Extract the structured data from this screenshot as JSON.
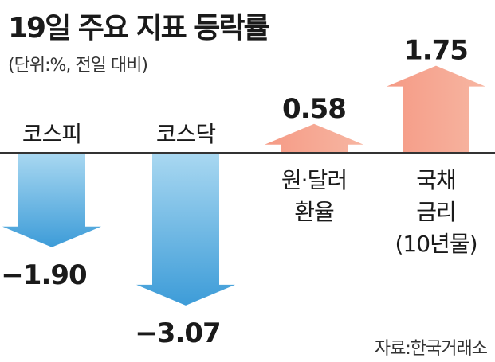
{
  "title": "19일 주요 지표 등락률",
  "unit_note": "(단위:%, 전일 대비)",
  "source": "자료:한국거래소",
  "colors": {
    "down_top": "#a9d8f1",
    "down_bottom": "#3d9cd8",
    "up_top": "#f59a85",
    "up_bottom": "#f7b6a2",
    "baseline": "#333333"
  },
  "chart_data": {
    "type": "bar",
    "title": "19일 주요 지표 등락률",
    "ylabel": "",
    "categories": [
      "코스피",
      "코스닥",
      "원·달러 환율",
      "국채 금리 (10년물)"
    ],
    "category_lines": [
      [
        "코스피"
      ],
      [
        "코스닥"
      ],
      [
        "원·달러",
        "환율"
      ],
      [
        "국채",
        "금리",
        "(10년물)"
      ]
    ],
    "values": [
      -1.9,
      -3.07,
      0.58,
      1.75
    ],
    "value_labels": [
      "−1.90",
      "−3.07",
      "0.58",
      "1.75"
    ],
    "grid": false,
    "legend": "none"
  }
}
